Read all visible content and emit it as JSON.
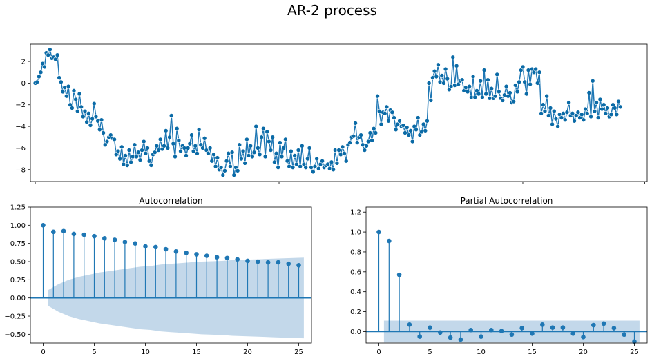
{
  "figure": {
    "suptitle": "AR-2 process"
  },
  "colors": {
    "line": "#1f77b4",
    "marker": "#0a6aa6",
    "band": "#c3d8ea",
    "zero": "#1f77b4",
    "axis": "#000000"
  },
  "chart_data": [
    {
      "id": "series",
      "type": "line",
      "title": "",
      "xlabel": "",
      "ylabel": "",
      "xlim": [
        -2,
        251
      ],
      "ylim": [
        -9.1,
        3.6
      ],
      "yticks": [
        -8,
        -6,
        -4,
        -2,
        0,
        2
      ],
      "ytick_labels": [
        "−8",
        "−6",
        "−4",
        "−2",
        "0",
        "2"
      ],
      "xtick_positions": [
        0,
        50,
        100,
        150,
        200,
        250
      ],
      "xtick_labels": [],
      "markers": true,
      "series": [
        {
          "values": [
            0.0,
            0.1,
            0.6,
            1.0,
            1.8,
            1.5,
            2.8,
            2.6,
            3.1,
            2.3,
            2.4,
            2.2,
            2.6,
            0.5,
            0.1,
            -0.8,
            -0.4,
            -1.2,
            -0.3,
            -2.0,
            -2.3,
            -0.7,
            -1.5,
            -2.6,
            -1.0,
            -2.2,
            -3.1,
            -2.6,
            -3.6,
            -2.8,
            -3.9,
            -3.3,
            -1.9,
            -3.1,
            -3.5,
            -4.3,
            -3.4,
            -4.6,
            -5.7,
            -5.4,
            -5.0,
            -4.8,
            -5.1,
            -5.2,
            -6.6,
            -6.3,
            -7.0,
            -5.9,
            -7.5,
            -6.7,
            -7.6,
            -6.2,
            -7.3,
            -6.8,
            -5.7,
            -6.8,
            -6.4,
            -7.1,
            -6.2,
            -5.4,
            -6.5,
            -6.0,
            -7.2,
            -7.6,
            -6.6,
            -6.4,
            -5.8,
            -6.2,
            -5.2,
            -6.1,
            -5.8,
            -4.4,
            -6.0,
            -5.0,
            -3.0,
            -5.6,
            -6.8,
            -4.2,
            -5.3,
            -6.3,
            -5.8,
            -6.0,
            -6.7,
            -6.0,
            -5.6,
            -4.8,
            -6.3,
            -5.8,
            -6.5,
            -4.3,
            -5.7,
            -6.0,
            -5.1,
            -6.2,
            -6.5,
            -6.0,
            -7.2,
            -6.6,
            -7.7,
            -6.9,
            -8.0,
            -7.8,
            -8.5,
            -8.1,
            -7.2,
            -6.5,
            -7.7,
            -6.4,
            -8.5,
            -7.8,
            -8.1,
            -5.7,
            -7.0,
            -6.3,
            -7.4,
            -5.2,
            -6.7,
            -5.8,
            -6.8,
            -6.4,
            -4.0,
            -6.0,
            -6.6,
            -5.0,
            -4.2,
            -6.8,
            -4.5,
            -5.4,
            -6.2,
            -5.0,
            -7.3,
            -6.5,
            -7.8,
            -5.5,
            -6.8,
            -6.0,
            -5.2,
            -7.2,
            -7.7,
            -6.3,
            -7.8,
            -6.7,
            -7.5,
            -6.2,
            -7.7,
            -5.8,
            -7.5,
            -7.8,
            -7.0,
            -6.0,
            -7.8,
            -8.2,
            -7.7,
            -7.0,
            -7.9,
            -7.5,
            -7.2,
            -7.8,
            -7.6,
            -7.5,
            -7.9,
            -7.3,
            -8.0,
            -6.2,
            -7.4,
            -6.2,
            -6.6,
            -5.9,
            -6.5,
            -7.2,
            -5.7,
            -5.5,
            -5.0,
            -4.9,
            -3.7,
            -5.5,
            -5.0,
            -4.8,
            -5.7,
            -6.2,
            -5.8,
            -5.4,
            -4.6,
            -5.3,
            -4.2,
            -4.6,
            -1.2,
            -2.6,
            -3.8,
            -2.7,
            -2.8,
            -2.2,
            -3.5,
            -2.5,
            -2.7,
            -3.2,
            -4.3,
            -3.8,
            -3.5,
            -4.0,
            -3.9,
            -4.6,
            -4.1,
            -4.8,
            -4.4,
            -5.4,
            -4.0,
            -4.3,
            -3.2,
            -4.8,
            -4.5,
            -3.8,
            -4.4,
            -3.5,
            0.0,
            -1.6,
            0.5,
            1.1,
            0.6,
            1.7,
            0.1,
            0.7,
            0.0,
            1.3,
            0.4,
            -0.6,
            -0.3,
            2.4,
            -0.2,
            1.6,
            -0.1,
            0.2,
            0.3,
            -0.7,
            -0.4,
            -0.8,
            -0.3,
            -1.3,
            0.6,
            -1.3,
            -0.7,
            -1.0,
            0.2,
            -1.3,
            1.2,
            -1.0,
            0.3,
            -1.4,
            -0.5,
            -1.4,
            -1.2,
            0.8,
            -0.8,
            -1.4,
            -1.6,
            -1.1,
            -0.3,
            -1.2,
            -0.9,
            -1.8,
            -1.7,
            -0.2,
            -0.8,
            0.1,
            1.2,
            1.5,
            0.1,
            -1.0,
            1.2,
            -0.1,
            1.3,
            1.0,
            1.3,
            0.0,
            1.0,
            -2.8,
            -2.0,
            -2.6,
            -1.2,
            -3.0,
            -2.3,
            -3.8,
            -2.6,
            -3.3,
            -4.0,
            -2.9,
            -3.2,
            -2.8,
            -3.4,
            -2.7,
            -1.8,
            -3.0,
            -2.8,
            -3.5,
            -3.0,
            -2.7,
            -3.2,
            -2.9,
            -3.4,
            -2.4,
            -2.8,
            -0.9,
            -3.1,
            0.2,
            -2.6,
            -1.8,
            -3.2,
            -1.5,
            -2.4,
            -2.0,
            -2.8,
            -2.3,
            -3.1,
            -2.9,
            -2.0,
            -2.3,
            -2.9,
            -1.7,
            -2.2
          ]
        }
      ]
    },
    {
      "id": "acf",
      "type": "stem",
      "title": "Autocorrelation",
      "xlabel": "",
      "ylabel": "",
      "xlim": [
        -1.25,
        26.25
      ],
      "ylim": [
        -0.62,
        1.25
      ],
      "xticks": [
        0,
        5,
        10,
        15,
        20,
        25
      ],
      "xtick_labels": [
        "0",
        "5",
        "10",
        "15",
        "20",
        "25"
      ],
      "yticks": [
        -0.5,
        -0.25,
        0.0,
        0.25,
        0.5,
        0.75,
        1.0,
        1.25
      ],
      "ytick_labels": [
        "−0.50",
        "−0.25",
        "0.00",
        "0.25",
        "0.50",
        "0.75",
        "1.00",
        "1.25"
      ],
      "lags": [
        0,
        1,
        2,
        3,
        4,
        5,
        6,
        7,
        8,
        9,
        10,
        11,
        12,
        13,
        14,
        15,
        16,
        17,
        18,
        19,
        20,
        21,
        22,
        23,
        24,
        25
      ],
      "values": [
        1.0,
        0.91,
        0.92,
        0.88,
        0.87,
        0.85,
        0.82,
        0.8,
        0.77,
        0.75,
        0.71,
        0.7,
        0.67,
        0.64,
        0.62,
        0.6,
        0.58,
        0.56,
        0.55,
        0.53,
        0.51,
        0.5,
        0.49,
        0.49,
        0.47,
        0.45
      ],
      "confidence": [
        0.11,
        0.19,
        0.25,
        0.29,
        0.32,
        0.35,
        0.37,
        0.39,
        0.41,
        0.43,
        0.44,
        0.46,
        0.47,
        0.48,
        0.49,
        0.5,
        0.505,
        0.51,
        0.52,
        0.525,
        0.53,
        0.535,
        0.54,
        0.545,
        0.55,
        0.555
      ]
    },
    {
      "id": "pacf",
      "type": "stem",
      "title": "Partial Autocorrelation",
      "xlabel": "",
      "ylabel": "",
      "xlim": [
        -1.25,
        26.25
      ],
      "ylim": [
        -0.115,
        1.25
      ],
      "xticks": [
        0,
        5,
        10,
        15,
        20,
        25
      ],
      "xtick_labels": [
        "0",
        "5",
        "10",
        "15",
        "20",
        "25"
      ],
      "yticks": [
        0.0,
        0.2,
        0.4,
        0.6,
        0.8,
        1.0,
        1.2
      ],
      "ytick_labels": [
        "0.0",
        "0.2",
        "0.4",
        "0.6",
        "0.8",
        "1.0",
        "1.2"
      ],
      "lags": [
        0,
        1,
        2,
        3,
        4,
        5,
        6,
        7,
        8,
        9,
        10,
        11,
        12,
        13,
        14,
        15,
        16,
        17,
        18,
        19,
        20,
        21,
        22,
        23,
        24,
        25
      ],
      "values": [
        1.0,
        0.91,
        0.57,
        0.07,
        -0.05,
        0.04,
        -0.01,
        -0.06,
        -0.08,
        0.015,
        -0.05,
        0.015,
        0.005,
        -0.03,
        0.035,
        -0.02,
        0.07,
        0.04,
        0.04,
        -0.02,
        -0.055,
        0.065,
        0.08,
        0.035,
        -0.03,
        -0.1
      ],
      "confidence_band": 0.11
    }
  ]
}
